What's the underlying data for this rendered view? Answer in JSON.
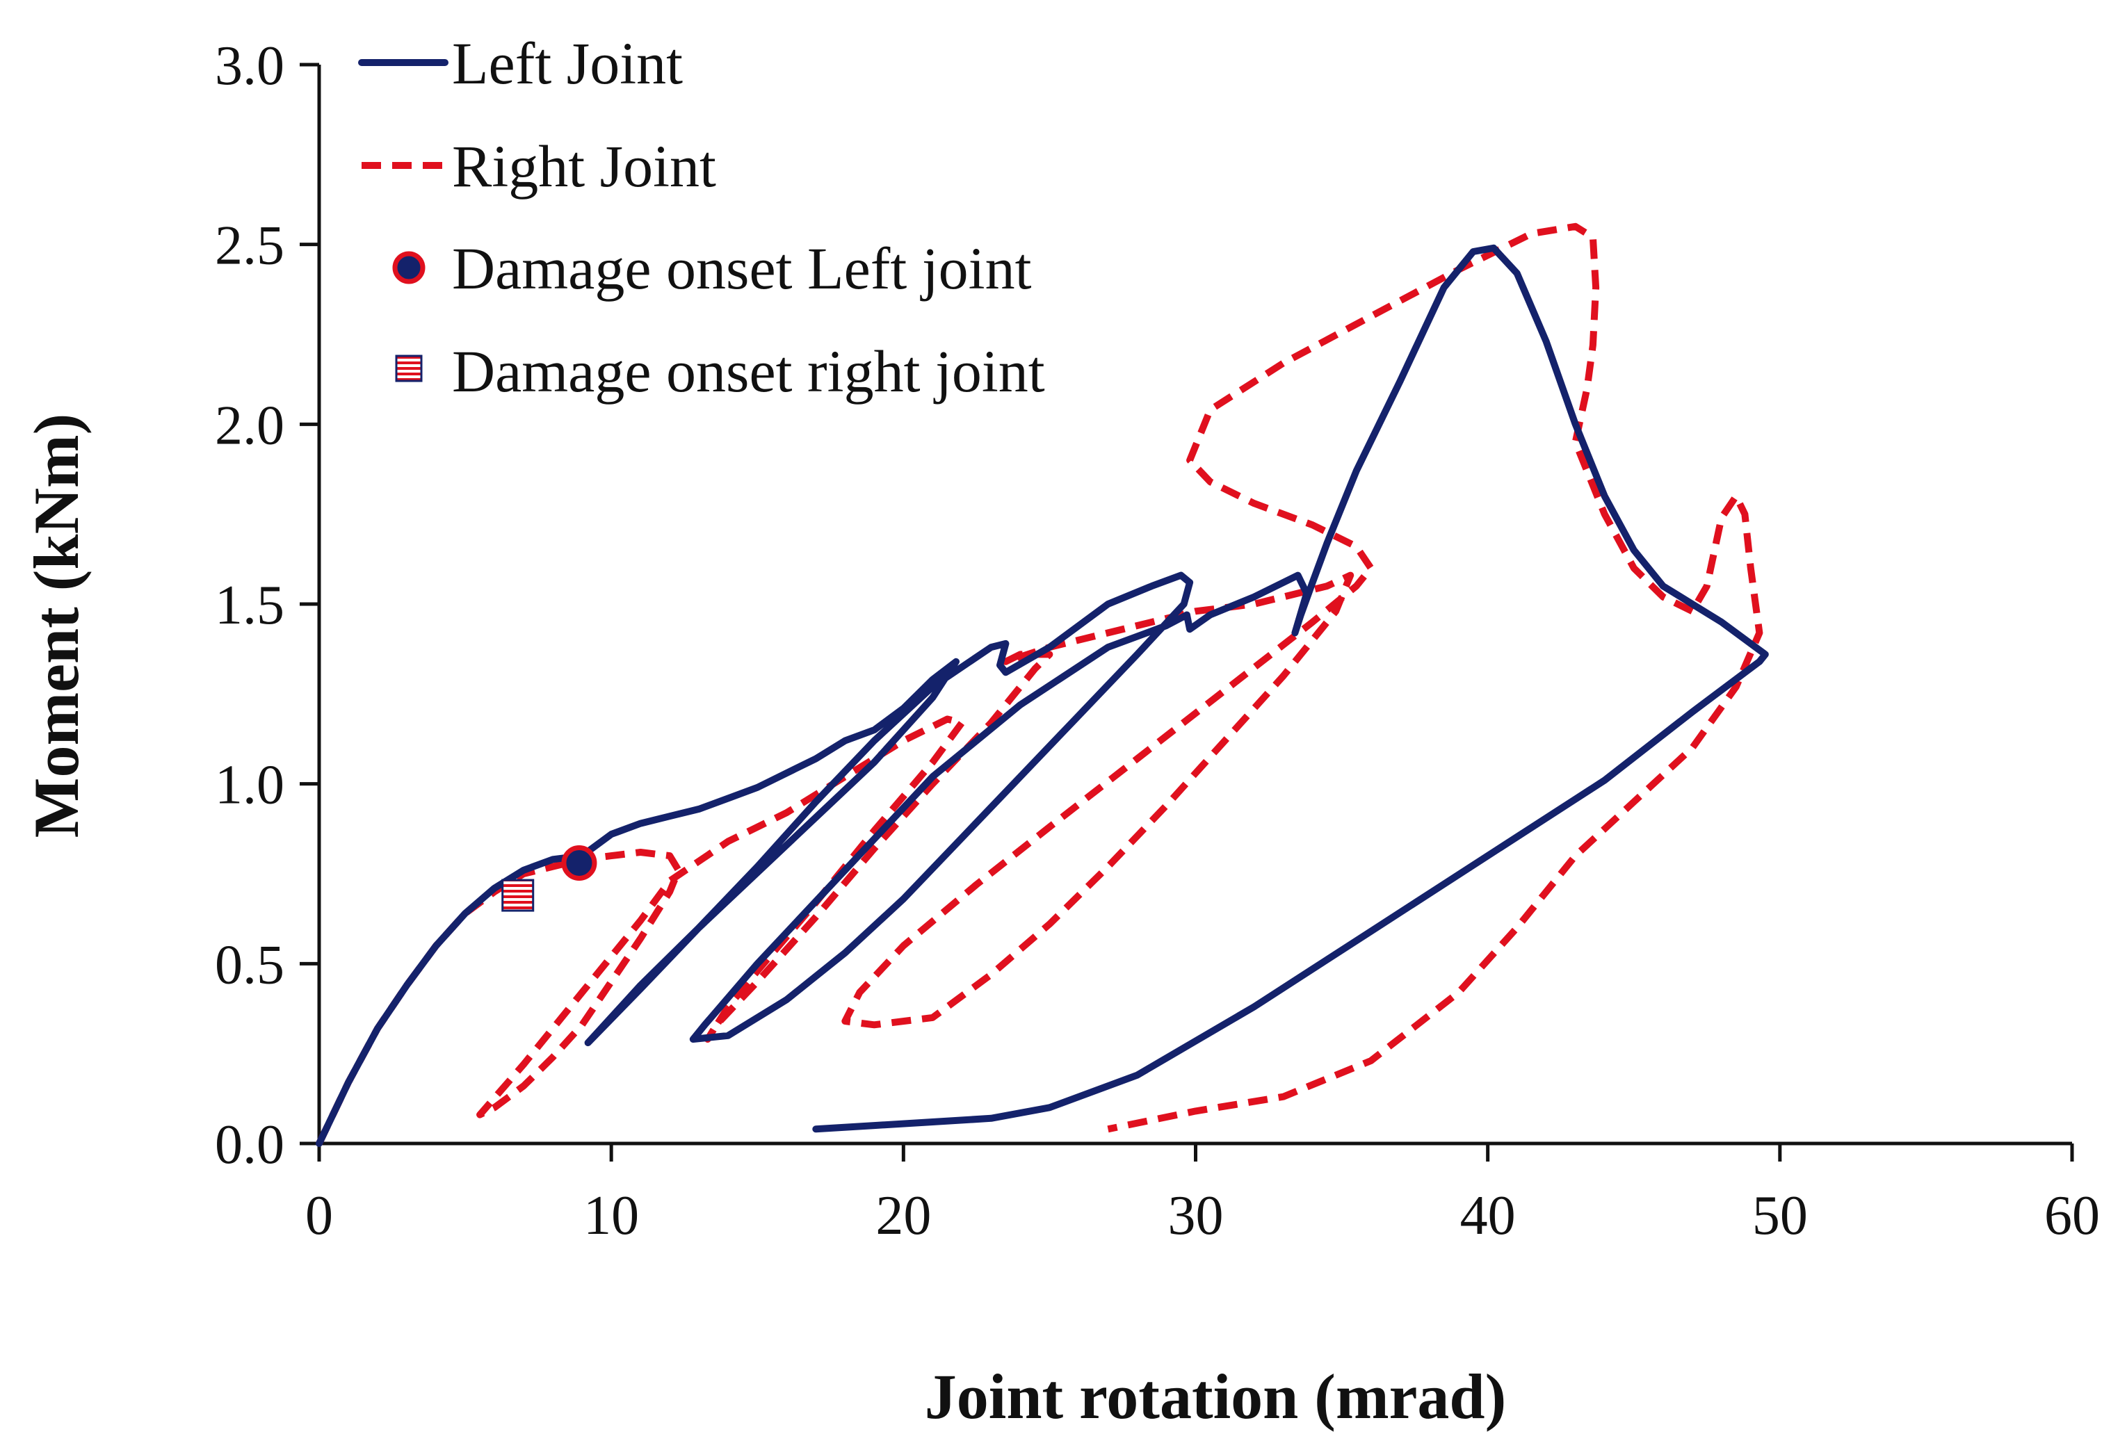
{
  "chart_data": {
    "type": "line",
    "title": "",
    "xlabel": "Joint rotation (mrad)",
    "ylabel": "Moment (kNm)",
    "xlim": [
      0,
      60
    ],
    "ylim": [
      0,
      3
    ],
    "xticks": [
      0,
      10,
      20,
      30,
      40,
      50,
      60
    ],
    "xtick_labels": [
      "0",
      "10",
      "20",
      "30",
      "40",
      "50",
      "60"
    ],
    "yticks": [
      0,
      0.5,
      1,
      1.5,
      2,
      2.5,
      3
    ],
    "ytick_labels": [
      "0.0",
      "0.5",
      "1.0",
      "1.5",
      "2.0",
      "2.5",
      "3.0"
    ],
    "grid": false,
    "legend_position": "top-left",
    "colors": {
      "left": "#14226b",
      "right": "#e0101e",
      "axis": "#111111"
    },
    "series": [
      {
        "name": "Left Joint",
        "style": "solid",
        "x": [
          0,
          1,
          2,
          3,
          4,
          5,
          6,
          7,
          8,
          9,
          10,
          11,
          12,
          13,
          14,
          15,
          16,
          17,
          18,
          19,
          20,
          21,
          21.8,
          21.0,
          19.0,
          16.0,
          13.0,
          11.0,
          9.2,
          11.0,
          13.0,
          15.0,
          17.0,
          19.0,
          21.0,
          23.0,
          23.5,
          23.3,
          23.5,
          25.0,
          27.0,
          28.5,
          29.5,
          29.8,
          29.6,
          28.0,
          26.0,
          24.0,
          22.0,
          20.0,
          18.0,
          16.0,
          14.0,
          12.8,
          13.2,
          15.0,
          18.0,
          21.0,
          24.0,
          27.0,
          29.0,
          29.7,
          29.8,
          30.5,
          32.0,
          33.5,
          33.8,
          33.4,
          33.6,
          34.0,
          34.5,
          35.5,
          37.0,
          38.5,
          39.5,
          40.2,
          41.0,
          42.0,
          43.0,
          44.0,
          45.0,
          46.0,
          47.0,
          48.0,
          49.0,
          49.5,
          49.3,
          47.0,
          44.0,
          40.0,
          36.0,
          32.0,
          28.0,
          25.0,
          23.0,
          21.0,
          19.0,
          17.0
        ],
        "y": [
          0,
          0.17,
          0.32,
          0.44,
          0.55,
          0.64,
          0.71,
          0.76,
          0.79,
          0.8,
          0.86,
          0.89,
          0.91,
          0.93,
          0.96,
          0.99,
          1.03,
          1.07,
          1.12,
          1.15,
          1.21,
          1.29,
          1.34,
          1.24,
          1.06,
          0.83,
          0.6,
          0.44,
          0.28,
          0.43,
          0.6,
          0.77,
          0.95,
          1.12,
          1.27,
          1.38,
          1.39,
          1.33,
          1.31,
          1.38,
          1.5,
          1.55,
          1.58,
          1.56,
          1.5,
          1.36,
          1.19,
          1.02,
          0.85,
          0.68,
          0.53,
          0.4,
          0.3,
          0.29,
          0.33,
          0.5,
          0.76,
          1.02,
          1.22,
          1.38,
          1.44,
          1.47,
          1.43,
          1.47,
          1.52,
          1.58,
          1.53,
          1.42,
          1.47,
          1.56,
          1.67,
          1.87,
          2.12,
          2.38,
          2.48,
          2.49,
          2.42,
          2.23,
          2.0,
          1.8,
          1.65,
          1.55,
          1.5,
          1.45,
          1.39,
          1.36,
          1.34,
          1.2,
          1.01,
          0.8,
          0.59,
          0.38,
          0.19,
          0.1,
          0.07,
          0.06,
          0.05,
          0.04
        ]
      },
      {
        "name": "Right Joint",
        "style": "dashed",
        "x": [
          0,
          1,
          2,
          3,
          4,
          5,
          6,
          7,
          8,
          9,
          10,
          11,
          12,
          12.3,
          12.0,
          11.0,
          10.0,
          9.0,
          8.0,
          7.0,
          6.0,
          5.5,
          7.0,
          9.0,
          11.0,
          12.0,
          14.0,
          16.0,
          18.0,
          20.0,
          21.5,
          22.0,
          21.0,
          19.0,
          17.0,
          15.0,
          14.0,
          13.3,
          13.6,
          15.0,
          17.0,
          19.0,
          21.0,
          23.0,
          24.5,
          25.0,
          24.0,
          23.5,
          25.0,
          27.0,
          29.0,
          30.0,
          31.0,
          32.0,
          33.0,
          34.5,
          35.3,
          34.8,
          33.0,
          31.0,
          29.0,
          27.0,
          25.0,
          23.0,
          21.0,
          19.0,
          18.0,
          18.5,
          20.0,
          22.5,
          25.0,
          28.0,
          31.0,
          34.0,
          35.5,
          36.0,
          35.5,
          34.0,
          32.0,
          30.5,
          29.8,
          30.5,
          33.0,
          36.0,
          39.0,
          41.5,
          43.0,
          43.6,
          43.7,
          43.6,
          43.4,
          43.0,
          44.0,
          45.0,
          46.0,
          47.0,
          47.5,
          48.0,
          48.5,
          48.8,
          49.0,
          49.3,
          48.5,
          47.0,
          45.0,
          43.0,
          41.0,
          39.0,
          36.0,
          33.0,
          30.0,
          27.0
        ],
        "y": [
          0,
          0.17,
          0.32,
          0.44,
          0.55,
          0.64,
          0.7,
          0.75,
          0.77,
          0.79,
          0.8,
          0.81,
          0.8,
          0.76,
          0.7,
          0.57,
          0.45,
          0.33,
          0.24,
          0.16,
          0.1,
          0.08,
          0.22,
          0.42,
          0.62,
          0.73,
          0.84,
          0.92,
          1.02,
          1.12,
          1.18,
          1.17,
          1.06,
          0.87,
          0.67,
          0.48,
          0.38,
          0.29,
          0.33,
          0.45,
          0.63,
          0.82,
          1.0,
          1.17,
          1.32,
          1.36,
          1.36,
          1.34,
          1.38,
          1.42,
          1.46,
          1.48,
          1.49,
          1.5,
          1.52,
          1.55,
          1.58,
          1.48,
          1.3,
          1.12,
          0.94,
          0.77,
          0.61,
          0.47,
          0.35,
          0.33,
          0.34,
          0.42,
          0.55,
          0.72,
          0.88,
          1.07,
          1.26,
          1.45,
          1.55,
          1.6,
          1.66,
          1.72,
          1.78,
          1.84,
          1.9,
          2.04,
          2.17,
          2.3,
          2.43,
          2.53,
          2.55,
          2.52,
          2.38,
          2.22,
          2.1,
          1.95,
          1.75,
          1.6,
          1.52,
          1.48,
          1.55,
          1.74,
          1.8,
          1.75,
          1.6,
          1.42,
          1.27,
          1.1,
          0.95,
          0.8,
          0.6,
          0.42,
          0.23,
          0.13,
          0.09,
          0.04
        ]
      }
    ],
    "markers": [
      {
        "name": "Damage onset Left joint",
        "x": 8.9,
        "y": 0.78,
        "shape": "circle"
      },
      {
        "name": "Damage onset right joint",
        "x": 6.8,
        "y": 0.69,
        "shape": "square"
      }
    ],
    "legend": [
      {
        "label": "Left Joint",
        "kind": "solid-line"
      },
      {
        "label": "Right Joint",
        "kind": "dashed-line"
      },
      {
        "label": "Damage onset Left joint",
        "kind": "circle"
      },
      {
        "label": "Damage onset right joint",
        "kind": "square"
      }
    ]
  }
}
